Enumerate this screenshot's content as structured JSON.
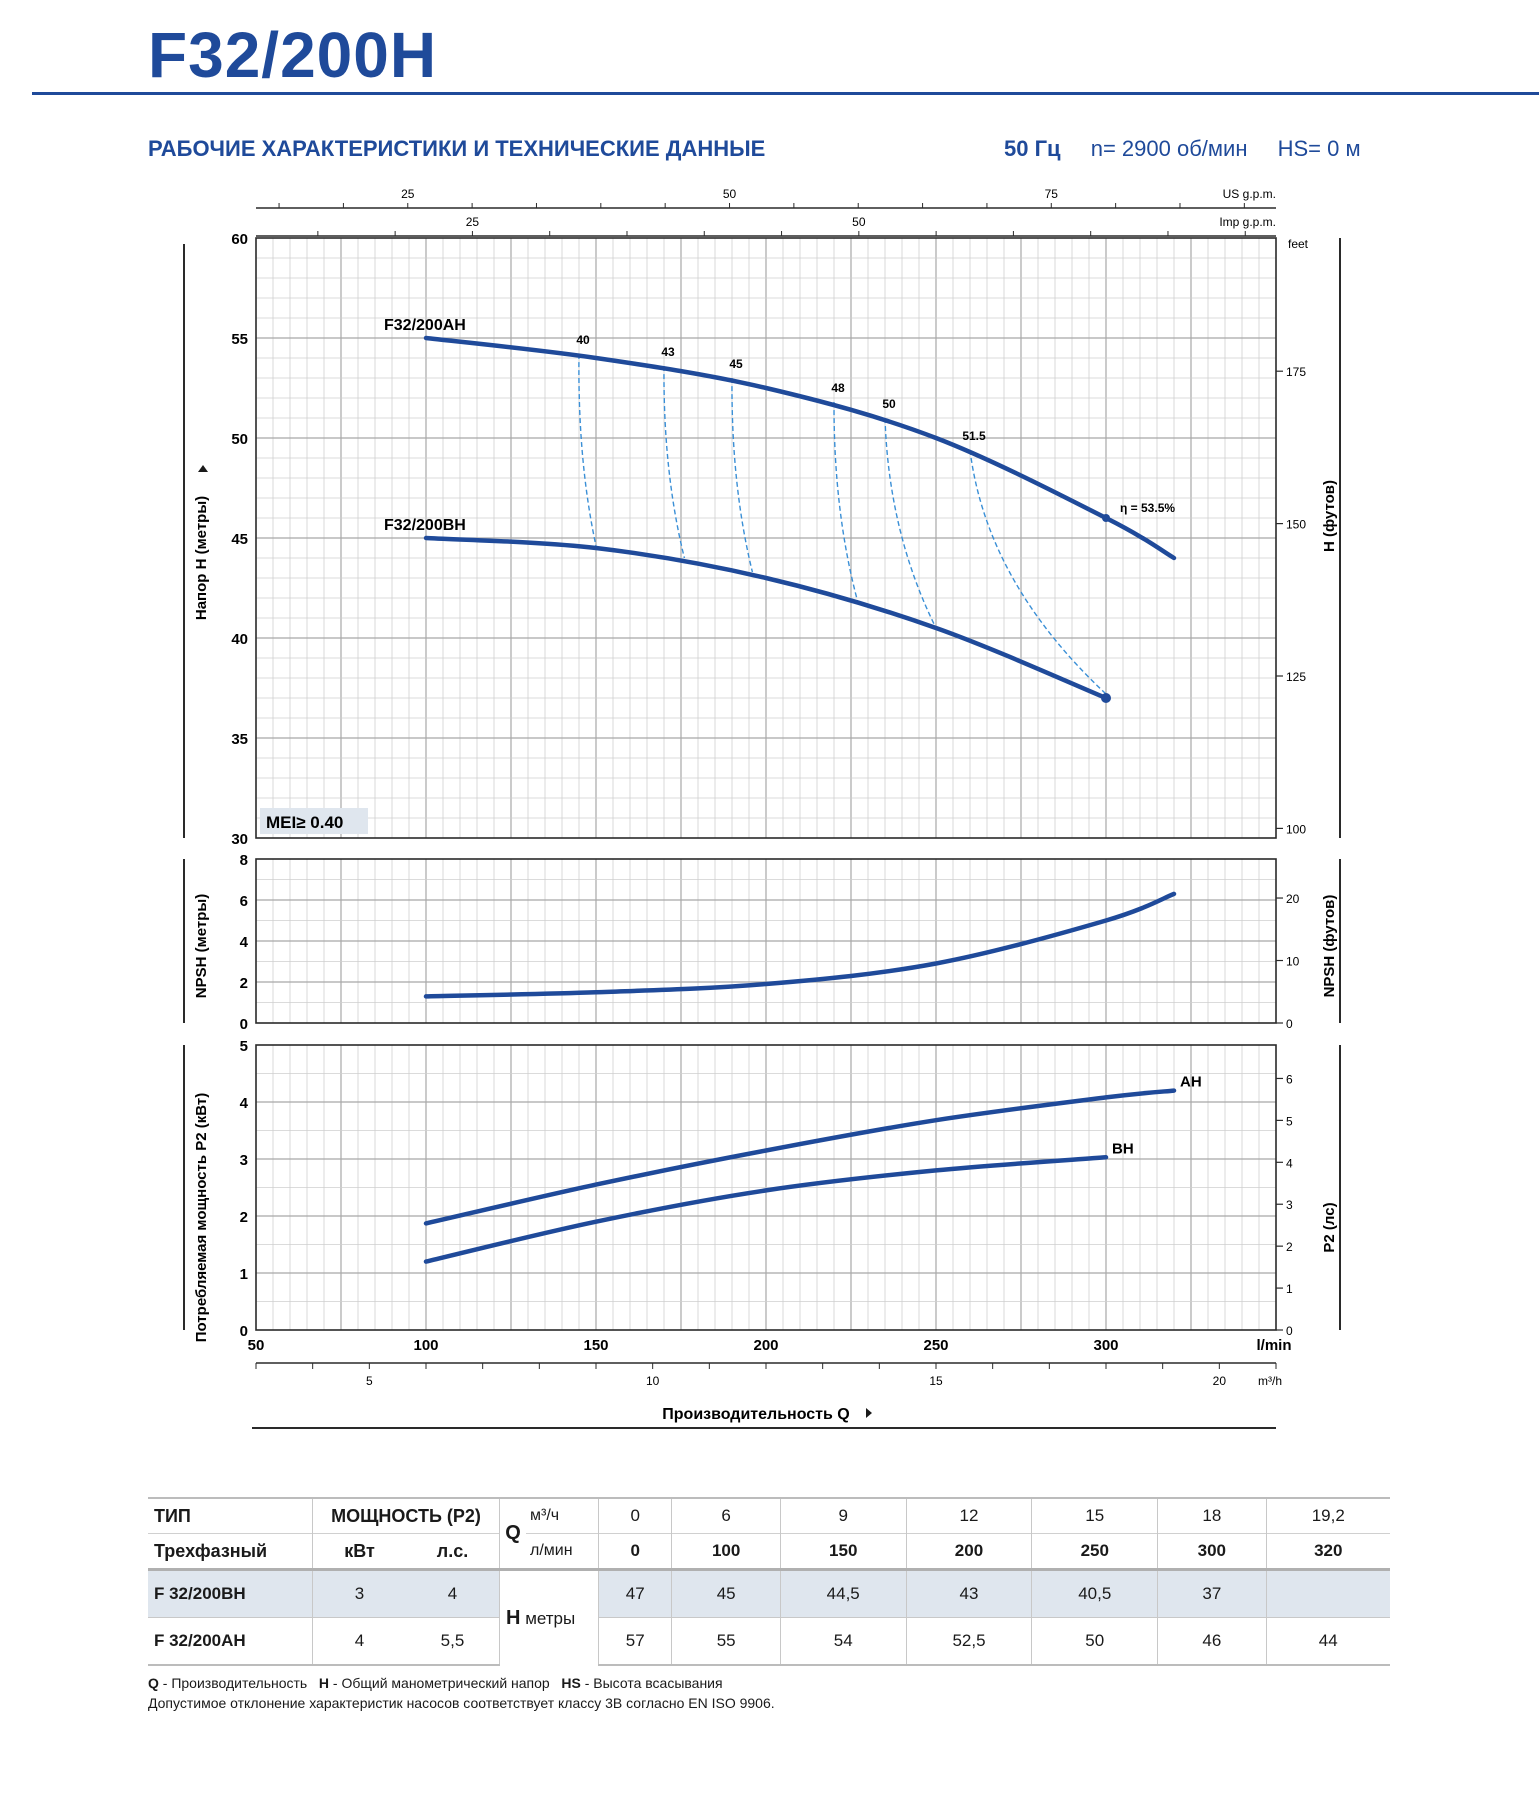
{
  "header": {
    "title": "F32/200H",
    "subtitle": "РАБОЧИЕ ХАРАКТЕРИСТИКИ И ТЕХНИЧЕСКИЕ ДАННЫЕ",
    "frequency": "50 Гц",
    "speed": "n= 2900 об/мин",
    "hs": "HS= 0 м"
  },
  "chart_data": [
    {
      "type": "line",
      "xlabel": "Производительность Q",
      "ylabel": "Напор H (метры)",
      "ylabel_right": "H (футов)",
      "x_unit": "l/min",
      "x_unit_m3h": "m³/h",
      "us_gpm_label": "US g.p.m.",
      "imp_gpm_label": "Imp g.p.m.",
      "feet_label": "feet",
      "xlim": [
        50,
        350
      ],
      "ylim": [
        30,
        60
      ],
      "x_ticks": [
        50,
        100,
        150,
        200,
        250,
        300
      ],
      "y_ticks": [
        30,
        35,
        40,
        45,
        50,
        55,
        60
      ],
      "y_right_ticks": [
        100,
        125,
        150,
        175
      ],
      "m3h_ticks": [
        5,
        10,
        15,
        20
      ],
      "us_gpm_ticks": [
        25,
        50,
        75
      ],
      "imp_gpm_ticks": [
        25,
        50
      ],
      "badge": "MEI≥ 0.40",
      "series": [
        {
          "name": "F32/200AH",
          "x": [
            100,
            150,
            200,
            250,
            300,
            320
          ],
          "y": [
            55,
            54,
            52.5,
            50,
            46,
            44
          ]
        },
        {
          "name": "F32/200BH",
          "x": [
            100,
            150,
            200,
            250,
            300
          ],
          "y": [
            45,
            44.5,
            43,
            40.5,
            37
          ]
        }
      ],
      "efficiency_curves": [
        {
          "label": "40",
          "top": [
            145,
            54.2
          ],
          "bottom": [
            150,
            44.6
          ]
        },
        {
          "label": "43",
          "top": [
            170,
            53.6
          ],
          "bottom": [
            176,
            44.0
          ]
        },
        {
          "label": "45",
          "top": [
            190,
            53.0
          ],
          "bottom": [
            196,
            43.3
          ]
        },
        {
          "label": "48",
          "top": [
            220,
            51.8
          ],
          "bottom": [
            227,
            41.8
          ]
        },
        {
          "label": "50",
          "top": [
            235,
            51.0
          ],
          "bottom": [
            250,
            40.5
          ]
        },
        {
          "label": "51.5",
          "top": [
            260,
            49.4
          ],
          "bottom": [
            300,
            37.2
          ]
        }
      ],
      "efficiency_max_label": "η = 53.5%"
    },
    {
      "type": "line",
      "ylabel": "NPSH (метры)",
      "ylabel_right": "NPSH (футов)",
      "ylim": [
        0,
        8
      ],
      "y_ticks": [
        0,
        2,
        4,
        6,
        8
      ],
      "y_right_ticks": [
        0,
        10,
        20
      ],
      "series": [
        {
          "name": "",
          "x": [
            100,
            150,
            200,
            250,
            300,
            320
          ],
          "y": [
            1.3,
            1.5,
            1.9,
            2.9,
            5.0,
            6.3
          ]
        }
      ]
    },
    {
      "type": "line",
      "ylabel": "Потребляемая мощность P2 (кВт)",
      "ylabel_right": "P2 (лс)",
      "ylim": [
        0,
        5
      ],
      "y_ticks": [
        0,
        1,
        2,
        3,
        4,
        5
      ],
      "y_right_ticks": [
        0,
        1,
        2,
        3,
        4,
        5,
        6
      ],
      "series": [
        {
          "name": "AH",
          "x": [
            100,
            150,
            200,
            250,
            300,
            320
          ],
          "y": [
            1.87,
            2.55,
            3.15,
            3.68,
            4.08,
            4.2
          ]
        },
        {
          "name": "BH",
          "x": [
            100,
            150,
            200,
            250,
            300
          ],
          "y": [
            1.2,
            1.9,
            2.45,
            2.8,
            3.03
          ]
        }
      ]
    }
  ],
  "table": {
    "type_hdr": "ТИП",
    "power_hdr": "МОЩНОСТЬ (P2)",
    "phase_hdr": "Трехфазный",
    "kw_hdr": "кВт",
    "hp_hdr": "л.с.",
    "q_label": "Q",
    "q_unit_m3h": "м³/ч",
    "q_unit_lmin": "л/мин",
    "h_label": "H",
    "h_unit": "метры",
    "q_m3h": [
      "0",
      "6",
      "9",
      "12",
      "15",
      "18",
      "19,2"
    ],
    "q_lmin": [
      "0",
      "100",
      "150",
      "200",
      "250",
      "300",
      "320"
    ],
    "rows": [
      {
        "model": "F 32/200BH",
        "kw": "3",
        "hp": "4",
        "h": [
          "47",
          "45",
          "44,5",
          "43",
          "40,5",
          "37",
          ""
        ]
      },
      {
        "model": "F 32/200AH",
        "kw": "4",
        "hp": "5,5",
        "h": [
          "57",
          "55",
          "54",
          "52,5",
          "50",
          "46",
          "44"
        ]
      }
    ]
  },
  "footnote": {
    "q_key": "Q",
    "q_text": " - Производительность",
    "h_key": "H",
    "h_text": " - Общий манометрический напор",
    "hs_key": "HS",
    "hs_text": " - Высота всасывания",
    "line2": "Допустимое отклонение характеристик насосов соответствует классу 3B согласно EN ISO 9906."
  },
  "colors": {
    "brand": "#1f4a9a",
    "curve": "#1f4a9a",
    "efficiency": "#3a8fd6",
    "grid": "#bdbdbd",
    "badge_bg": "#dfe6ee"
  }
}
